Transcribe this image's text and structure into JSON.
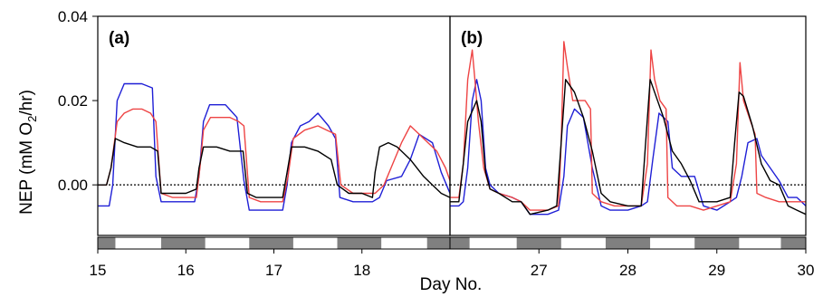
{
  "chart_data": {
    "type": "line",
    "ylabel_main": "NEP (mM O",
    "ylabel_sub": "2",
    "ylabel_end": "/hr)",
    "xlabel": "Day No.",
    "ylim": [
      -0.012,
      0.04
    ],
    "yticks": [
      0.0,
      0.02,
      0.04
    ],
    "ytick_labels": [
      "0.00",
      "0.02",
      "0.04"
    ],
    "zero_line": true,
    "colors": {
      "blue": "#1f1fd6",
      "red": "#ee4444",
      "black": "#000000",
      "dark_bar": "#808080"
    },
    "panels": [
      {
        "label": "(a)",
        "xlim": [
          15.0,
          19.0
        ],
        "xticks": [
          15,
          16,
          17,
          18
        ],
        "xtick_labels": [
          "15",
          "16",
          "17",
          "18"
        ],
        "dark_periods": [
          [
            15.0,
            15.2
          ],
          [
            15.72,
            16.22
          ],
          [
            16.72,
            17.22
          ],
          [
            17.72,
            18.22
          ],
          [
            18.74,
            19.0
          ]
        ],
        "series": [
          {
            "color": "#1f1fd6",
            "x": [
              15.0,
              15.08,
              15.13,
              15.17,
              15.22,
              15.3,
              15.4,
              15.5,
              15.62,
              15.66,
              15.72,
              15.85,
              16.0,
              16.1,
              16.15,
              16.2,
              16.27,
              16.35,
              16.45,
              16.58,
              16.66,
              16.72,
              16.85,
              17.0,
              17.1,
              17.15,
              17.2,
              17.3,
              17.4,
              17.5,
              17.62,
              17.7,
              17.75,
              17.9,
              18.05,
              18.12,
              18.2,
              18.28,
              18.45,
              18.55,
              18.65,
              18.8,
              18.9,
              19.0
            ],
            "y": [
              -0.005,
              -0.005,
              -0.005,
              0.0,
              0.02,
              0.024,
              0.024,
              0.024,
              0.023,
              0.002,
              -0.004,
              -0.004,
              -0.004,
              -0.004,
              0.002,
              0.015,
              0.019,
              0.019,
              0.019,
              0.016,
              0.001,
              -0.006,
              -0.006,
              -0.006,
              -0.006,
              0.0,
              0.01,
              0.014,
              0.015,
              0.017,
              0.014,
              0.011,
              -0.003,
              -0.004,
              -0.004,
              -0.004,
              -0.003,
              0.001,
              0.002,
              0.006,
              0.012,
              0.01,
              0.003,
              -0.002
            ]
          },
          {
            "color": "#ee4444",
            "x": [
              15.0,
              15.1,
              15.15,
              15.22,
              15.3,
              15.4,
              15.5,
              15.6,
              15.66,
              15.72,
              15.85,
              16.0,
              16.12,
              16.16,
              16.2,
              16.28,
              16.4,
              16.5,
              16.6,
              16.66,
              16.72,
              16.85,
              17.0,
              17.1,
              17.16,
              17.22,
              17.35,
              17.5,
              17.6,
              17.7,
              17.76,
              17.9,
              18.05,
              18.15,
              18.25,
              18.35,
              18.45,
              18.55,
              18.65,
              18.75,
              18.85,
              18.95,
              19.0
            ],
            "y": [
              0.0,
              0.0,
              0.004,
              0.015,
              0.017,
              0.018,
              0.018,
              0.017,
              0.015,
              -0.002,
              -0.003,
              -0.003,
              -0.003,
              0.004,
              0.013,
              0.016,
              0.016,
              0.016,
              0.015,
              0.014,
              -0.003,
              -0.004,
              -0.004,
              -0.004,
              0.002,
              0.011,
              0.013,
              0.014,
              0.013,
              0.012,
              0.0,
              -0.002,
              -0.002,
              -0.002,
              0.0,
              0.005,
              0.01,
              0.014,
              0.012,
              0.01,
              0.008,
              0.004,
              0.001
            ]
          },
          {
            "color": "#000000",
            "x": [
              15.0,
              15.1,
              15.15,
              15.2,
              15.3,
              15.45,
              15.6,
              15.68,
              15.72,
              15.85,
              16.0,
              16.12,
              16.15,
              16.2,
              16.35,
              16.5,
              16.65,
              16.7,
              16.8,
              16.95,
              17.1,
              17.15,
              17.2,
              17.35,
              17.5,
              17.65,
              17.72,
              17.85,
              18.0,
              18.12,
              18.15,
              18.2,
              18.3,
              18.4,
              18.55,
              18.7,
              18.8,
              18.9,
              19.0
            ],
            "y": [
              0.0,
              0.0,
              0.004,
              0.011,
              0.01,
              0.009,
              0.009,
              0.008,
              -0.002,
              -0.002,
              -0.002,
              -0.001,
              0.004,
              0.009,
              0.009,
              0.008,
              0.008,
              -0.002,
              -0.003,
              -0.003,
              -0.003,
              0.003,
              0.009,
              0.009,
              0.008,
              0.006,
              0.0,
              -0.002,
              -0.002,
              -0.003,
              0.003,
              0.009,
              0.01,
              0.009,
              0.006,
              0.002,
              0.0,
              -0.002,
              -0.003
            ]
          }
        ]
      },
      {
        "label": "(b)",
        "xlim": [
          26.0,
          30.0
        ],
        "xticks": [
          27,
          28,
          29,
          30
        ],
        "xtick_labels": [
          "27",
          "28",
          "29",
          "30"
        ],
        "dark_periods": [
          [
            26.0,
            26.22
          ],
          [
            26.75,
            27.25
          ],
          [
            27.75,
            28.25
          ],
          [
            28.75,
            29.25
          ],
          [
            29.72,
            30.0
          ]
        ],
        "series": [
          {
            "color": "#1f1fd6",
            "x": [
              26.0,
              26.1,
              26.15,
              26.2,
              26.25,
              26.3,
              26.35,
              26.4,
              26.45,
              26.55,
              26.7,
              26.8,
              26.9,
              27.1,
              27.22,
              27.28,
              27.32,
              27.4,
              27.5,
              27.6,
              27.7,
              27.8,
              28.0,
              28.15,
              28.22,
              28.28,
              28.35,
              28.45,
              28.5,
              28.6,
              28.75,
              28.85,
              29.0,
              29.15,
              29.22,
              29.28,
              29.35,
              29.45,
              29.5,
              29.6,
              29.7,
              29.8,
              29.9,
              30.0
            ],
            "y": [
              -0.005,
              -0.005,
              -0.004,
              0.004,
              0.02,
              0.025,
              0.02,
              0.004,
              0.0,
              -0.002,
              -0.003,
              -0.004,
              -0.007,
              -0.007,
              -0.006,
              0.002,
              0.014,
              0.018,
              0.016,
              0.004,
              -0.005,
              -0.006,
              -0.006,
              -0.005,
              -0.004,
              0.006,
              0.017,
              0.015,
              0.004,
              0.002,
              0.002,
              -0.005,
              -0.006,
              -0.004,
              -0.003,
              0.002,
              0.01,
              0.011,
              0.007,
              0.004,
              0.001,
              -0.003,
              -0.003,
              -0.005
            ]
          },
          {
            "color": "#ee4444",
            "x": [
              26.0,
              26.1,
              26.15,
              26.2,
              26.25,
              26.28,
              26.32,
              26.38,
              26.45,
              26.55,
              26.7,
              26.8,
              26.9,
              27.1,
              27.22,
              27.25,
              27.28,
              27.32,
              27.38,
              27.45,
              27.52,
              27.58,
              27.6,
              27.7,
              27.85,
              28.0,
              28.15,
              28.22,
              28.26,
              28.3,
              28.36,
              28.43,
              28.45,
              28.55,
              28.7,
              28.85,
              29.0,
              29.15,
              29.22,
              29.26,
              29.3,
              29.38,
              29.43,
              29.45,
              29.55,
              29.7,
              29.85,
              30.0
            ],
            "y": [
              -0.003,
              -0.003,
              0.005,
              0.025,
              0.032,
              0.025,
              0.015,
              0.004,
              -0.001,
              -0.002,
              -0.003,
              -0.004,
              -0.006,
              -0.006,
              -0.005,
              0.01,
              0.034,
              0.028,
              0.02,
              0.02,
              0.02,
              0.018,
              -0.002,
              -0.004,
              -0.005,
              -0.005,
              -0.005,
              0.005,
              0.032,
              0.025,
              0.02,
              0.018,
              -0.003,
              -0.005,
              -0.005,
              -0.006,
              -0.005,
              -0.004,
              0.005,
              0.029,
              0.02,
              0.015,
              0.012,
              -0.002,
              -0.003,
              -0.004,
              -0.004,
              -0.004
            ]
          },
          {
            "color": "#000000",
            "x": [
              26.0,
              26.1,
              26.15,
              26.2,
              26.3,
              26.35,
              26.4,
              26.45,
              26.55,
              26.7,
              26.8,
              26.9,
              27.1,
              27.2,
              27.25,
              27.3,
              27.4,
              27.5,
              27.6,
              27.7,
              27.8,
              28.0,
              28.15,
              28.2,
              28.25,
              28.3,
              28.4,
              28.5,
              28.6,
              28.7,
              28.8,
              29.0,
              29.15,
              29.2,
              29.25,
              29.3,
              29.4,
              29.5,
              29.6,
              29.7,
              29.8,
              29.9,
              30.0
            ],
            "y": [
              -0.004,
              -0.004,
              0.005,
              0.015,
              0.02,
              0.015,
              0.003,
              -0.001,
              -0.002,
              -0.004,
              -0.004,
              -0.007,
              -0.006,
              -0.005,
              0.01,
              0.025,
              0.022,
              0.016,
              0.008,
              -0.002,
              -0.004,
              -0.005,
              -0.005,
              0.01,
              0.025,
              0.022,
              0.016,
              0.008,
              0.005,
              0.001,
              -0.004,
              -0.004,
              -0.003,
              0.01,
              0.022,
              0.021,
              0.014,
              0.005,
              0.001,
              0.0,
              -0.005,
              -0.006,
              -0.007
            ]
          }
        ]
      }
    ]
  }
}
